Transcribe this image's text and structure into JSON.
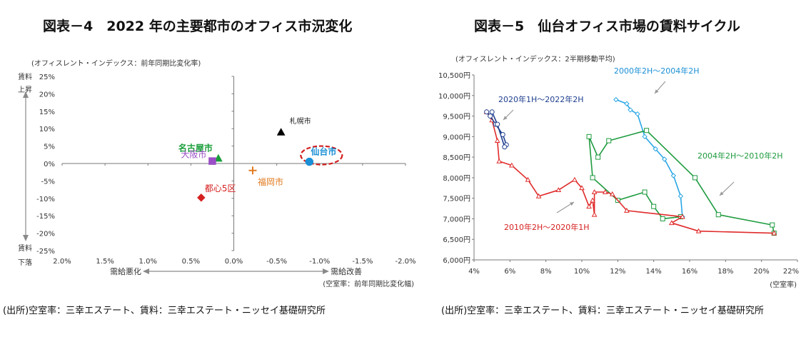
{
  "chart_data": [
    {
      "type": "scatter",
      "title": "図表－4　2022 年の主要都市のオフィス市況変化",
      "note": "(オフィスレント・インデックス：前年同期比変化率)",
      "ylabel_top": "賃料\n上昇",
      "ylabel_bottom": "賃料\n下落",
      "xlabel_left": "需給悪化",
      "xlabel_right": "需給改善",
      "x_unit": "(空室率：前年同期比変化幅)",
      "xlim": [
        2.0,
        -2.0
      ],
      "ylim": [
        -25,
        25
      ],
      "xticks": [
        "2.0%",
        "1.5%",
        "1.0%",
        "0.5%",
        "0.0%",
        "-0.5%",
        "-1.0%",
        "-1.5%",
        "-2.0%"
      ],
      "yticks": [
        "25%",
        "20%",
        "15%",
        "10%",
        "5%",
        "0%",
        "-5%",
        "-10%",
        "-15%",
        "-20%",
        "-25%"
      ],
      "points": [
        {
          "name": "札幌市",
          "x": -0.55,
          "y": 9.0,
          "color": "#000000",
          "marker": "triangle"
        },
        {
          "name": "名古屋市",
          "x": 0.18,
          "y": 1.5,
          "color": "#1a9e3a",
          "marker": "triangle"
        },
        {
          "name": "大阪市",
          "x": 0.25,
          "y": 0.7,
          "color": "#9a4fc6",
          "marker": "square"
        },
        {
          "name": "仙台市",
          "x": -0.88,
          "y": 0.5,
          "color": "#1a8fd6",
          "marker": "circle"
        },
        {
          "name": "福岡市",
          "x": -0.22,
          "y": -2.0,
          "color": "#e07b20",
          "marker": "plus"
        },
        {
          "name": "都心5区",
          "x": 0.38,
          "y": -9.8,
          "color": "#d62020",
          "marker": "diamond"
        }
      ],
      "highlight": "仙台市"
    },
    {
      "type": "line",
      "title": "図表－5　仙台オフィス市場の賃料サイクル",
      "note": "(オフィスレント・インデックス：2半期移動平均)",
      "x_unit": "(空室率)",
      "xlim": [
        4,
        22
      ],
      "ylim": [
        6000,
        10500
      ],
      "xticks": [
        "4%",
        "6%",
        "8%",
        "10%",
        "12%",
        "14%",
        "16%",
        "18%",
        "20%",
        "22%"
      ],
      "yticks": [
        "10,500円",
        "10,000円",
        "9,500円",
        "9,000円",
        "8,500円",
        "8,000円",
        "7,500円",
        "7,000円",
        "6,500円",
        "6,000円"
      ],
      "series": [
        {
          "name": "2000年2H～2004年2H",
          "color": "#2aa6e6",
          "marker": "diamond",
          "points": [
            [
              11.9,
              9900
            ],
            [
              12.5,
              9800
            ],
            [
              12.7,
              9650
            ],
            [
              13.1,
              9550
            ],
            [
              13.5,
              9000
            ],
            [
              14.1,
              8700
            ],
            [
              14.6,
              8450
            ],
            [
              15.1,
              8050
            ],
            [
              15.5,
              7550
            ],
            [
              15.6,
              7050
            ]
          ]
        },
        {
          "name": "2004年2H～2010年2H",
          "color": "#1e9b3f",
          "marker": "square",
          "points": [
            [
              15.5,
              7050
            ],
            [
              14.5,
              7000
            ],
            [
              14.0,
              7300
            ],
            [
              13.5,
              7650
            ],
            [
              12.0,
              7450
            ],
            [
              10.6,
              8000
            ],
            [
              10.4,
              9000
            ],
            [
              10.9,
              8500
            ],
            [
              11.5,
              8900
            ],
            [
              13.6,
              9150
            ],
            [
              16.3,
              8000
            ],
            [
              17.6,
              7100
            ],
            [
              20.6,
              6850
            ],
            [
              20.7,
              6650
            ]
          ]
        },
        {
          "name": "2010年2H～2020年1H",
          "color": "#e02a2a",
          "marker": "triangle",
          "points": [
            [
              20.7,
              6650
            ],
            [
              16.5,
              6700
            ],
            [
              15.0,
              6900
            ],
            [
              15.6,
              7050
            ],
            [
              12.5,
              7200
            ],
            [
              11.7,
              7600
            ],
            [
              11.3,
              7650
            ],
            [
              10.7,
              7650
            ],
            [
              10.7,
              7100
            ],
            [
              10.6,
              7450
            ],
            [
              10.4,
              7300
            ],
            [
              10.0,
              7750
            ],
            [
              9.6,
              7950
            ],
            [
              8.7,
              7700
            ],
            [
              7.6,
              7550
            ],
            [
              7.0,
              7950
            ],
            [
              6.1,
              8300
            ],
            [
              5.4,
              8400
            ],
            [
              5.3,
              8900
            ],
            [
              5.0,
              9400
            ],
            [
              4.7,
              9600
            ]
          ]
        },
        {
          "name": "2020年1H～2022年2H",
          "color": "#1f3f8f",
          "marker": "circle",
          "points": [
            [
              4.7,
              9600
            ],
            [
              4.9,
              9500
            ],
            [
              5.2,
              9300
            ],
            [
              5.6,
              9050
            ],
            [
              5.8,
              8800
            ],
            [
              5.7,
              8750
            ],
            [
              5.3,
              9300
            ],
            [
              5.0,
              9600
            ]
          ]
        }
      ],
      "annotations": [
        "2000年2H～2004年2H",
        "2004年2H～2010年2H",
        "2010年2H～2020年1H",
        "2020年1H～2022年2H"
      ]
    }
  ],
  "sources": [
    "(出所)空室率：三幸エステート、賃料：三幸エステート・ニッセイ基礎研究所",
    "(出所)空室率：三幸エステート、賃料：三幸エステート・ニッセイ基礎研究所"
  ]
}
